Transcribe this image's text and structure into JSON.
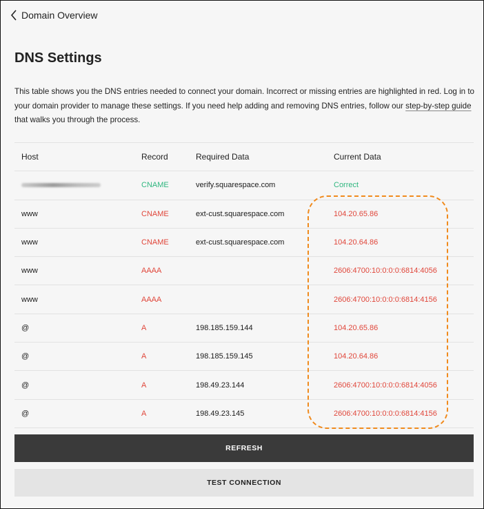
{
  "nav": {
    "back_label": "Domain Overview"
  },
  "page": {
    "title": "DNS Settings",
    "description_before": "This table shows you the DNS entries needed to connect your domain. Incorrect or missing entries are highlighted in red. Log in to your domain provider to manage these settings. If you need help adding and removing DNS entries, follow our ",
    "description_link": "step-by-step guide",
    "description_after": " that walks you through the process."
  },
  "table": {
    "headers": [
      "Host",
      "Record",
      "Required Data",
      "Current Data"
    ],
    "rows": [
      {
        "host": "",
        "host_blurred": true,
        "record": "CNAME",
        "required": "verify.squarespace.com",
        "current": "Correct",
        "status": "ok"
      },
      {
        "host": "www",
        "record": "CNAME",
        "required": "ext-cust.squarespace.com",
        "current": "104.20.65.86",
        "status": "bad"
      },
      {
        "host": "www",
        "record": "CNAME",
        "required": "ext-cust.squarespace.com",
        "current": "104.20.64.86",
        "status": "bad"
      },
      {
        "host": "www",
        "record": "AAAA",
        "required": "",
        "current": "2606:4700:10:0:0:0:6814:4056",
        "status": "bad"
      },
      {
        "host": "www",
        "record": "AAAA",
        "required": "",
        "current": "2606:4700:10:0:0:0:6814:4156",
        "status": "bad"
      },
      {
        "host": "@",
        "record": "A",
        "required": "198.185.159.144",
        "current": "104.20.65.86",
        "status": "bad"
      },
      {
        "host": "@",
        "record": "A",
        "required": "198.185.159.145",
        "current": "104.20.64.86",
        "status": "bad"
      },
      {
        "host": "@",
        "record": "A",
        "required": "198.49.23.144",
        "current": "2606:4700:10:0:0:0:6814:4056",
        "status": "bad"
      },
      {
        "host": "@",
        "record": "A",
        "required": "198.49.23.145",
        "current": "2606:4700:10:0:0:0:6814:4156",
        "status": "bad"
      }
    ]
  },
  "buttons": {
    "refresh": "REFRESH",
    "test": "TEST CONNECTION"
  },
  "colors": {
    "correct": "#2fb67f",
    "error": "#e0463a",
    "highlight": "#f08a1c",
    "primary_button": "#3a3a3a"
  }
}
